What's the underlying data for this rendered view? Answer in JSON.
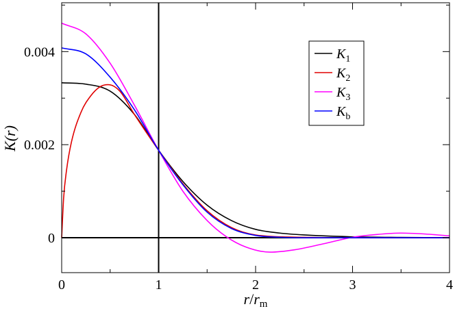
{
  "chart_data": {
    "type": "line",
    "xlabel": {
      "main": "r",
      "sep": "/",
      "main2": "r",
      "sub": "m"
    },
    "ylabel": {
      "main": "K",
      "arg": "(r)"
    },
    "xlim": [
      0,
      4
    ],
    "ylim": [
      -0.00075,
      0.00505
    ],
    "xticks": [
      0,
      1,
      2,
      3,
      4
    ],
    "xtick_labels": [
      "0",
      "1",
      "2",
      "3",
      "4"
    ],
    "yticks": [
      0,
      0.002,
      0.004
    ],
    "ytick_labels": [
      "0",
      "0.002",
      "0.004"
    ],
    "grid": false,
    "legend_position": "top-right",
    "reference_lines": [
      {
        "orientation": "vertical",
        "x": 1
      },
      {
        "orientation": "horizontal",
        "y": 0
      }
    ],
    "series": [
      {
        "name": "K",
        "sub": "1",
        "color": "#000000",
        "x": [
          0,
          0.25,
          0.5,
          0.75,
          1.0,
          1.25,
          1.5,
          1.75,
          2.0,
          2.25,
          2.5,
          3.0,
          3.5,
          4.0
        ],
        "y": [
          0.00333,
          0.0033,
          0.00315,
          0.00265,
          0.00188,
          0.00121,
          0.0007,
          0.00037,
          0.00018,
          0.0001,
          6e-05,
          2e-05,
          7e-06,
          2e-06
        ]
      },
      {
        "name": "K",
        "sub": "2",
        "color": "#e00000",
        "x": [
          0,
          0.02,
          0.05,
          0.1,
          0.2,
          0.3,
          0.4,
          0.48,
          0.6,
          0.75,
          1.0,
          1.25,
          1.5,
          1.75,
          2.0,
          2.5,
          3.0,
          4.0
        ],
        "y": [
          0,
          0.00085,
          0.00145,
          0.00205,
          0.0027,
          0.00305,
          0.00325,
          0.00329,
          0.00315,
          0.00265,
          0.00188,
          0.00116,
          0.00058,
          0.00022,
          6e-05,
          1e-05,
          0,
          0
        ]
      },
      {
        "name": "K",
        "sub": "3",
        "color": "#ff00ff",
        "x": [
          0,
          0.25,
          0.5,
          0.75,
          1.0,
          1.25,
          1.5,
          1.7,
          1.9,
          2.15,
          2.4,
          2.7,
          3.0,
          3.25,
          3.5,
          3.75,
          4.0
        ],
        "y": [
          0.00461,
          0.00438,
          0.00375,
          0.00285,
          0.00188,
          0.001,
          0.00037,
          2e-05,
          -0.0002,
          -0.00031,
          -0.00026,
          -0.00013,
          1e-05,
          7e-05,
          0.0001,
          8e-05,
          4e-05
        ]
      },
      {
        "name": "K",
        "sub": "b",
        "color": "#0000ff",
        "x": [
          0,
          0.25,
          0.5,
          0.75,
          1.0,
          1.25,
          1.5,
          1.75,
          2.0,
          2.25,
          2.5,
          3.0,
          4.0
        ],
        "y": [
          0.00408,
          0.00395,
          0.00345,
          0.00275,
          0.00188,
          0.00114,
          0.00055,
          0.0002,
          5e-05,
          1e-05,
          0,
          0,
          0
        ]
      }
    ]
  }
}
